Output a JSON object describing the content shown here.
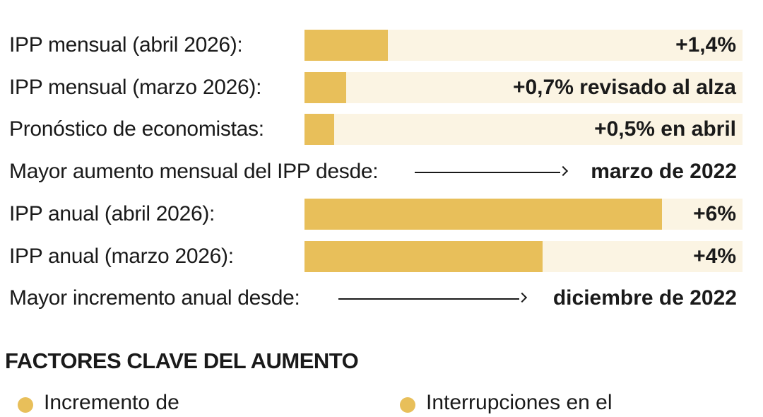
{
  "chart_data": {
    "type": "bar",
    "unit": "%",
    "bars": [
      {
        "label": "IPP mensual (abril 2026):",
        "value": 1.4,
        "value_label": "+1,4%"
      },
      {
        "label": "IPP mensual (marzo 2026):",
        "value": 0.7,
        "value_label": "+0,7% revisado al alza"
      },
      {
        "label": "Pronóstico de economistas:",
        "value": 0.5,
        "value_label": "+0,5% en abril"
      },
      {
        "label": "IPP anual (abril 2026):",
        "value": 6,
        "value_label": "+6%"
      },
      {
        "label": "IPP anual (marzo 2026):",
        "value": 4,
        "value_label": "+4%"
      }
    ],
    "xlim": [
      0,
      7.35
    ]
  },
  "notes": [
    {
      "label": "Mayor aumento mensual del IPP desde:",
      "value": "marzo de 2022"
    },
    {
      "label": "Mayor incremento anual desde:",
      "value": "diciembre de 2022"
    }
  ],
  "section": {
    "title": "FACTORES CLAVE DEL AUMENTO",
    "items": [
      "Incremento de",
      "Interrupciones en el"
    ]
  },
  "colors": {
    "bar": "#e8bf5a",
    "track": "#fbf4e3"
  }
}
